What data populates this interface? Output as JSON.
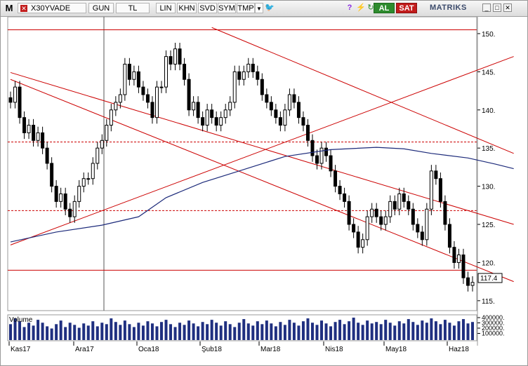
{
  "toolbar": {
    "menu_label": "M",
    "symbol": "X30YVADE",
    "period_button": "GUN",
    "currency_button": "TL",
    "scale_button": "LIN",
    "khn_button": "KHN",
    "svd_button": "SVD",
    "sym_button": "SYM",
    "tmp_button": "TMP",
    "buy_button": "AL",
    "sell_button": "SAT",
    "logo": "MATRIKS"
  },
  "colors": {
    "candle": "#000000",
    "trend_line": "#cc0000",
    "moving_average": "#1c2a7a",
    "volume_bar": "#1f2f80",
    "buy": "#2e8b2e",
    "sell": "#c21c1c"
  },
  "chart_data": {
    "type": "candlestick",
    "y_axis": {
      "ticks": [
        150,
        145,
        140,
        135,
        130,
        125,
        120,
        115
      ],
      "last_price_label": "117.4",
      "ylim": [
        113.7,
        152.2
      ]
    },
    "x_axis": {
      "labels": [
        "Kas17",
        "Ara17",
        "Oca18",
        "Şub18",
        "Mar18",
        "Nis18",
        "May18",
        "Haz18"
      ]
    },
    "horizontal_levels": [
      {
        "value": 150.5,
        "style": "solid"
      },
      {
        "value": 135.8,
        "style": "dashed"
      },
      {
        "value": 126.8,
        "style": "dashed"
      },
      {
        "value": 119.0,
        "style": "solid"
      }
    ],
    "trend_lines": [
      {
        "from": {
          "i": 0,
          "v": 122.3
        },
        "to": {
          "i": 110,
          "v": 147.0
        }
      },
      {
        "from": {
          "i": 0,
          "v": 144.0
        },
        "to": {
          "i": 110,
          "v": 117.5
        }
      },
      {
        "from": {
          "i": 44,
          "v": 150.8
        },
        "to": {
          "i": 110,
          "v": 134.3
        }
      },
      {
        "from": {
          "i": 0,
          "v": 144.9
        },
        "to": {
          "i": 110,
          "v": 125.0
        }
      }
    ],
    "moving_average": [
      [
        0,
        122.7
      ],
      [
        10,
        124.0
      ],
      [
        20,
        124.9
      ],
      [
        28,
        126.0
      ],
      [
        34,
        128.5
      ],
      [
        42,
        130.5
      ],
      [
        50,
        132.0
      ],
      [
        60,
        133.9
      ],
      [
        70,
        134.8
      ],
      [
        80,
        135.1
      ],
      [
        86,
        134.9
      ],
      [
        92,
        134.3
      ],
      [
        100,
        133.7
      ],
      [
        106,
        132.9
      ],
      [
        110,
        132.3
      ]
    ],
    "volume_panel": {
      "title": "Volume",
      "ticks": [
        "400000.",
        "300000.",
        "200000.",
        "100000."
      ]
    },
    "closes": [
      141,
      143,
      139,
      137,
      138,
      136,
      137,
      135,
      133,
      130,
      128,
      129,
      127,
      126,
      128,
      130,
      131,
      131,
      133,
      135,
      136,
      138,
      140,
      141,
      142,
      146,
      144,
      145,
      143,
      142,
      141,
      139,
      143,
      143,
      147,
      146,
      148,
      146,
      144,
      140,
      141,
      139,
      138,
      140,
      139,
      138,
      139,
      140,
      141,
      145,
      144,
      145,
      146,
      145,
      144,
      142,
      141,
      140,
      139,
      138,
      140,
      142,
      141,
      139,
      138,
      136,
      134,
      133,
      135,
      134,
      132,
      130,
      129,
      128,
      125,
      124,
      122,
      123,
      126,
      127,
      126,
      125,
      126,
      128,
      127,
      129,
      128,
      127,
      125,
      124,
      123,
      127,
      132,
      131,
      128,
      125,
      122,
      120,
      121,
      118,
      117,
      117.4
    ],
    "volumes": [
      22,
      30,
      26,
      18,
      24,
      20,
      28,
      24,
      19,
      16,
      22,
      27,
      18,
      24,
      21,
      17,
      23,
      20,
      26,
      19,
      24,
      22,
      30,
      25,
      21,
      27,
      22,
      18,
      24,
      20,
      26,
      23,
      19,
      25,
      28,
      22,
      18,
      24,
      21,
      27,
      23,
      19,
      25,
      22,
      28,
      24,
      20,
      26,
      22,
      18,
      24,
      29,
      23,
      20,
      26,
      22,
      27,
      23,
      19,
      25,
      21,
      28,
      24,
      20,
      26,
      30,
      24,
      21,
      27,
      23,
      19,
      25,
      28,
      22,
      26,
      31,
      24,
      21,
      27,
      23,
      25,
      22,
      28,
      24,
      20,
      26,
      23,
      29,
      25,
      21,
      27,
      24,
      30,
      26,
      22,
      28,
      24,
      20,
      26,
      29,
      23,
      25
    ]
  }
}
